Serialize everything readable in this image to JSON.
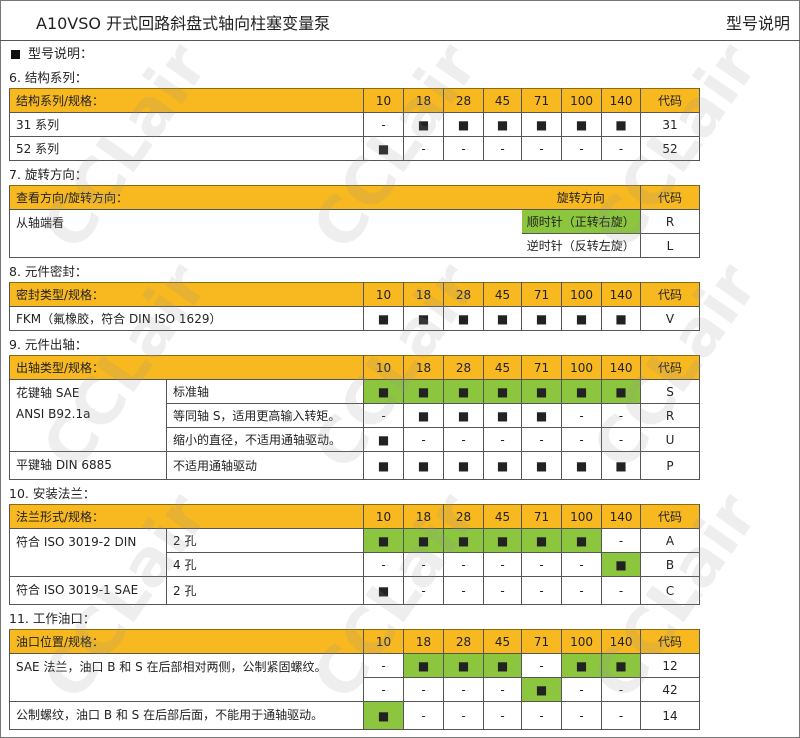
{
  "header": {
    "title": "A10VSO 开式回路斜盘式轴向柱塞变量泵",
    "right": "型号说明"
  },
  "main_heading": "型号说明：",
  "sizes": [
    "10",
    "18",
    "28",
    "45",
    "71",
    "100",
    "140"
  ],
  "code_label": "代码",
  "colors": {
    "header_yellow": "#F7B820",
    "highlight_green": "#8CC63F"
  },
  "watermark": "CCLair",
  "sections": [
    {
      "title": "6.  结构系列：",
      "header": "结构系列/规格：",
      "rows": [
        {
          "label": "31 系列",
          "cells": [
            "-",
            "■",
            "■",
            "■",
            "■",
            "■",
            "■"
          ],
          "green": [],
          "code": "31"
        },
        {
          "label": "52 系列",
          "cells": [
            "■",
            "-",
            "-",
            "-",
            "-",
            "-",
            "-"
          ],
          "green": [],
          "code": "52"
        }
      ]
    },
    {
      "title": "7.  旋转方向：",
      "header": "查看方向/旋转方向：",
      "dir_header": "旋转方向",
      "view_label": "从轴端看",
      "rows": [
        {
          "dir": "顺时针（正转右旋）",
          "green": true,
          "code": "R"
        },
        {
          "dir": "逆时针（反转左旋）",
          "green": false,
          "code": "L"
        }
      ]
    },
    {
      "title": "8.  元件密封：",
      "header": "密封类型/规格：",
      "rows": [
        {
          "label": "FKM（氟橡胶，符合 DIN ISO 1629）",
          "cells": [
            "■",
            "■",
            "■",
            "■",
            "■",
            "■",
            "■"
          ],
          "green": [],
          "code": "V"
        }
      ]
    },
    {
      "title": "9.  元件出轴：",
      "header": "出轴类型/规格：",
      "groups": [
        {
          "label": "花键轴  SAE",
          "label2": "ANSI B92.1a",
          "rows": [
            {
              "sub": "标准轴",
              "cells": [
                "■",
                "■",
                "■",
                "■",
                "■",
                "■",
                "■"
              ],
              "green": [
                0,
                1,
                2,
                3,
                4,
                5,
                6
              ],
              "code": "S"
            },
            {
              "sub": "等同轴 S，适用更高输入转矩。",
              "cells": [
                "-",
                "■",
                "■",
                "■",
                "■",
                "-",
                "-"
              ],
              "green": [],
              "code": "R"
            },
            {
              "sub": "缩小的直径，不适用通轴驱动。",
              "cells": [
                "■",
                "-",
                "-",
                "-",
                "-",
                "-",
                "-"
              ],
              "green": [],
              "code": "U"
            }
          ]
        },
        {
          "label": "平键轴  DIN 6885",
          "label2": "",
          "rows": [
            {
              "sub": "不适用通轴驱动",
              "cells": [
                "■",
                "■",
                "■",
                "■",
                "■",
                "■",
                "■"
              ],
              "green": [],
              "code": "P"
            }
          ]
        }
      ]
    },
    {
      "title": "10. 安装法兰：",
      "header": "法兰形式/规格：",
      "groups": [
        {
          "label": "符合 ISO 3019-2 DIN",
          "label2": "",
          "rows": [
            {
              "sub": "2 孔",
              "cells": [
                "■",
                "■",
                "■",
                "■",
                "■",
                "■",
                "-"
              ],
              "green": [
                0,
                1,
                2,
                3,
                4,
                5
              ],
              "code": "A"
            },
            {
              "sub": "4 孔",
              "cells": [
                "-",
                "-",
                "-",
                "-",
                "-",
                "-",
                "■"
              ],
              "green": [
                6
              ],
              "code": "B"
            }
          ]
        },
        {
          "label": "符合 ISO 3019-1 SAE",
          "label2": "",
          "rows": [
            {
              "sub": "2 孔",
              "cells": [
                "■",
                "-",
                "-",
                "-",
                "-",
                "-",
                "-"
              ],
              "green": [],
              "code": "C"
            }
          ]
        }
      ]
    },
    {
      "title": "11. 工作油口：",
      "header": "油口位置/规格：",
      "groups": [
        {
          "label": "SAE 法兰，油口 B 和 S 在后部相对两侧，公制紧固螺纹。",
          "wide": true,
          "rows": [
            {
              "cells": [
                "-",
                "■",
                "■",
                "■",
                "-",
                "■",
                "■"
              ],
              "green": [
                1,
                2,
                3,
                5,
                6
              ],
              "code": "12"
            },
            {
              "cells": [
                "-",
                "-",
                "-",
                "-",
                "■",
                "-",
                "-"
              ],
              "green": [
                4
              ],
              "code": "42"
            }
          ]
        },
        {
          "label": "公制螺纹，油口 B 和 S 在后部后面，不能用于通轴驱动。",
          "wide": true,
          "rows": [
            {
              "cells": [
                "■",
                "-",
                "-",
                "-",
                "-",
                "-",
                "-"
              ],
              "green": [
                0
              ],
              "code": "14"
            }
          ]
        }
      ]
    }
  ]
}
